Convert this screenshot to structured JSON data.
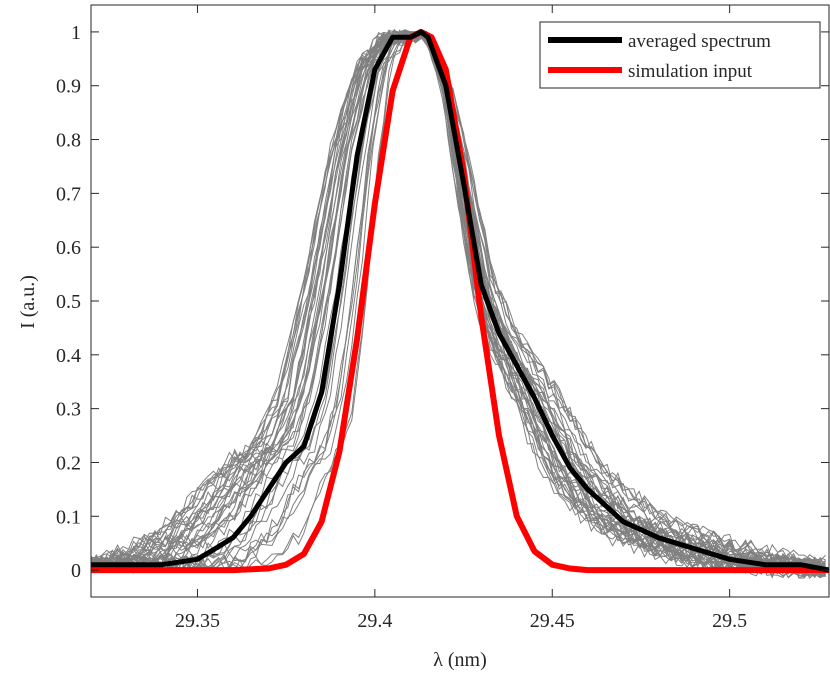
{
  "chart_data": {
    "type": "line",
    "xlabel": "λ (nm)",
    "ylabel": "I (a.u.)",
    "xlim": [
      29.32,
      29.528
    ],
    "ylim": [
      -0.05,
      1.05
    ],
    "x_ticks": [
      29.35,
      29.4,
      29.45,
      29.5
    ],
    "x_tick_labels": [
      "29.35",
      "29.4",
      "29.45",
      "29.5"
    ],
    "y_ticks": [
      0,
      0.1,
      0.2,
      0.3,
      0.4,
      0.5,
      0.6,
      0.7,
      0.8,
      0.9,
      1
    ],
    "y_tick_labels": [
      "0",
      "0.1",
      "0.2",
      "0.3",
      "0.4",
      "0.5",
      "0.6",
      "0.7",
      "0.8",
      "0.9",
      "1"
    ],
    "grid": false,
    "legend_position": "top-right",
    "colors": {
      "individual": "#808080",
      "averaged": "#000000",
      "simulation": "#ff0000",
      "axis": "#262626"
    },
    "individual_spectra_count": 40,
    "series": [
      {
        "name": "averaged spectrum",
        "x": [
          29.32,
          29.33,
          29.34,
          29.35,
          29.355,
          29.36,
          29.365,
          29.37,
          29.375,
          29.38,
          29.385,
          29.39,
          29.395,
          29.4,
          29.405,
          29.41,
          29.413,
          29.415,
          29.42,
          29.425,
          29.43,
          29.435,
          29.44,
          29.445,
          29.45,
          29.455,
          29.46,
          29.465,
          29.47,
          29.48,
          29.49,
          29.5,
          29.51,
          29.52,
          29.528
        ],
        "y": [
          0.01,
          0.01,
          0.01,
          0.02,
          0.04,
          0.06,
          0.1,
          0.15,
          0.2,
          0.23,
          0.33,
          0.53,
          0.77,
          0.93,
          0.99,
          0.99,
          1.0,
          0.99,
          0.9,
          0.72,
          0.53,
          0.44,
          0.38,
          0.32,
          0.25,
          0.19,
          0.15,
          0.12,
          0.09,
          0.06,
          0.04,
          0.02,
          0.01,
          0.01,
          0.0
        ]
      },
      {
        "name": "simulation input",
        "x": [
          29.32,
          29.34,
          29.36,
          29.37,
          29.375,
          29.38,
          29.385,
          29.39,
          29.395,
          29.4,
          29.405,
          29.41,
          29.413,
          29.416,
          29.42,
          29.425,
          29.43,
          29.435,
          29.44,
          29.445,
          29.45,
          29.455,
          29.46,
          29.48,
          29.5,
          29.528
        ],
        "y": [
          0.0,
          0.0,
          0.0,
          0.003,
          0.01,
          0.03,
          0.09,
          0.22,
          0.43,
          0.68,
          0.89,
          0.99,
          1.0,
          0.99,
          0.93,
          0.74,
          0.47,
          0.25,
          0.1,
          0.035,
          0.01,
          0.003,
          0.0,
          0.0,
          0.0,
          0.0
        ]
      }
    ]
  }
}
